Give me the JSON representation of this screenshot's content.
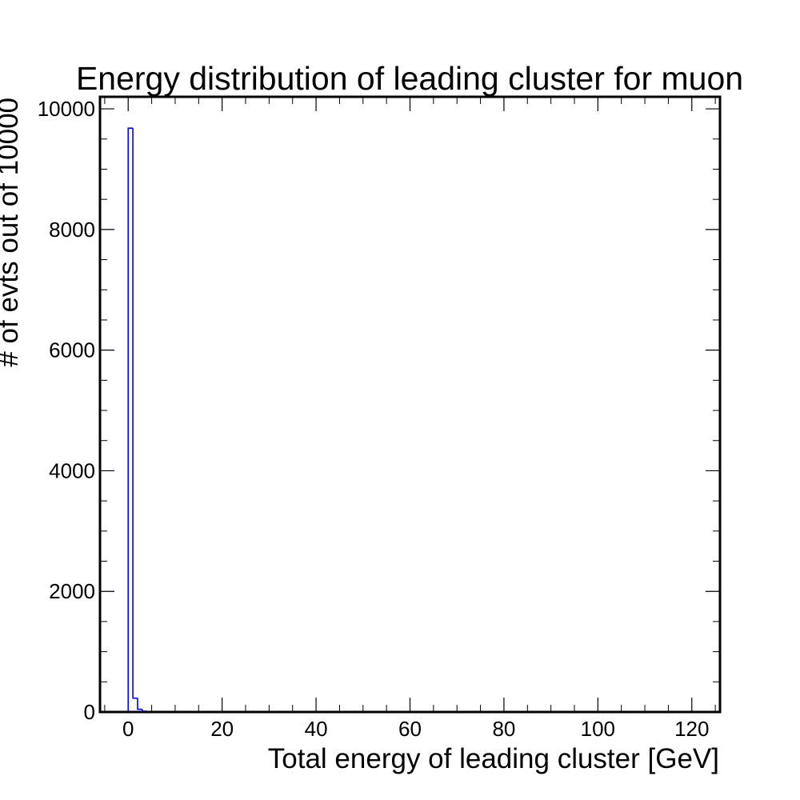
{
  "chart_data": {
    "type": "histogram",
    "title": "Energy distribution of leading cluster for muon",
    "xlabel": "Total energy of leading cluster [GeV]",
    "ylabel": "# of evts out of 10000",
    "xlim": [
      -6,
      126
    ],
    "ylim": [
      0,
      10200
    ],
    "x_ticks": [
      0,
      20,
      40,
      60,
      80,
      100,
      120
    ],
    "y_ticks": [
      0,
      2000,
      4000,
      6000,
      8000,
      10000
    ],
    "x_minor_step": 5,
    "y_minor_step": 500,
    "bin_width": 1,
    "bins": [
      {
        "x0": 0,
        "x1": 1,
        "count": 9680
      },
      {
        "x0": 1,
        "x1": 2,
        "count": 230
      },
      {
        "x0": 2,
        "x1": 3,
        "count": 45
      },
      {
        "x0": 3,
        "x1": 4,
        "count": 12
      },
      {
        "x0": 4,
        "x1": 5,
        "count": 4
      }
    ],
    "line_color": "#0000ff",
    "grid": false,
    "legend": "none"
  }
}
